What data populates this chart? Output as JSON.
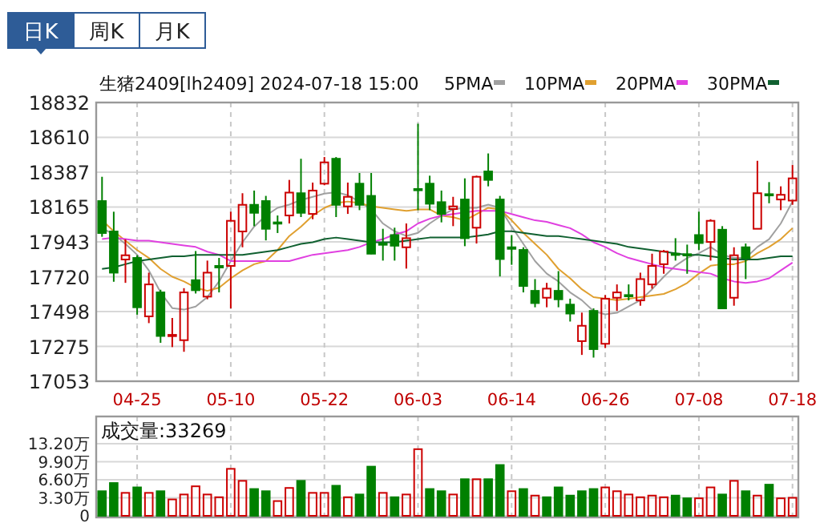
{
  "chart_data": [
    {
      "type": "candlestick",
      "title": "生猪2409[lh2409] 2024-07-18 15:00",
      "annotations": [
        "日K",
        "周K",
        "月K"
      ],
      "categories": [
        null,
        null,
        null,
        "04-25",
        null,
        null,
        null,
        null,
        null,
        null,
        null,
        "05-10",
        null,
        null,
        null,
        null,
        null,
        null,
        null,
        "05-22",
        null,
        null,
        null,
        null,
        null,
        null,
        null,
        "06-03",
        null,
        null,
        null,
        null,
        null,
        null,
        null,
        "06-14",
        null,
        null,
        null,
        null,
        null,
        null,
        null,
        "06-26",
        null,
        null,
        null,
        null,
        null,
        null,
        null,
        "07-08",
        null,
        null,
        null,
        null,
        null,
        null,
        null,
        "07-18"
      ],
      "ohlc": [
        [
          18203,
          18358,
          17975,
          17999
        ],
        [
          18009,
          18135,
          17688,
          17746
        ],
        [
          17830,
          17959,
          17681,
          17857
        ],
        [
          17840,
          17857,
          17478,
          17525
        ],
        [
          17467,
          17746,
          17424,
          17671
        ],
        [
          17620,
          17637,
          17298,
          17342
        ],
        [
          17342,
          17457,
          17271,
          17349
        ],
        [
          17315,
          17647,
          17241,
          17620
        ],
        [
          17698,
          17884,
          17613,
          17634
        ],
        [
          17593,
          17823,
          17576,
          17746
        ],
        [
          17789,
          17840,
          17620,
          17779
        ],
        [
          17789,
          18135,
          17518,
          18077
        ],
        [
          18009,
          18253,
          17908,
          18179
        ],
        [
          18179,
          18270,
          18043,
          18128
        ],
        [
          18203,
          18236,
          17952,
          18026
        ],
        [
          18067,
          18111,
          17999,
          18060
        ],
        [
          18111,
          18338,
          18060,
          18257
        ],
        [
          18253,
          18473,
          18101,
          18128
        ],
        [
          18121,
          18321,
          18087,
          18270
        ],
        [
          18314,
          18484,
          18304,
          18450
        ],
        [
          18473,
          18484,
          18101,
          18179
        ],
        [
          18169,
          18321,
          18121,
          18230
        ],
        [
          18314,
          18382,
          18145,
          18179
        ],
        [
          18236,
          18382,
          17864,
          17867
        ],
        [
          17932,
          18026,
          17823,
          17925
        ],
        [
          17986,
          18033,
          17823,
          17918
        ],
        [
          17908,
          18060,
          17772,
          17966
        ],
        [
          18280,
          18697,
          18145,
          18274
        ],
        [
          18314,
          18365,
          18145,
          18186
        ],
        [
          18196,
          18270,
          18067,
          18121
        ],
        [
          18152,
          18230,
          18043,
          18169
        ],
        [
          18213,
          18348,
          17915,
          17966
        ],
        [
          18033,
          18365,
          17932,
          18358
        ],
        [
          18392,
          18507,
          18297,
          18338
        ],
        [
          18213,
          18236,
          17722,
          17833
        ],
        [
          17908,
          17986,
          17796,
          17898
        ],
        [
          17891,
          17908,
          17620,
          17661
        ],
        [
          17630,
          17705,
          17525,
          17552
        ],
        [
          17586,
          17681,
          17525,
          17644
        ],
        [
          17630,
          17756,
          17525,
          17576
        ],
        [
          17542,
          17580,
          17434,
          17485
        ],
        [
          17309,
          17491,
          17221,
          17407
        ],
        [
          17502,
          17518,
          17204,
          17258
        ],
        [
          17292,
          17603,
          17265,
          17580
        ],
        [
          17586,
          17671,
          17502,
          17620
        ],
        [
          17603,
          17671,
          17569,
          17596
        ],
        [
          17569,
          17746,
          17535,
          17705
        ],
        [
          17671,
          17867,
          17644,
          17789
        ],
        [
          17800,
          17891,
          17739,
          17881
        ],
        [
          17867,
          17966,
          17823,
          17860
        ],
        [
          17864,
          17925,
          17739,
          17857
        ],
        [
          17986,
          18135,
          17891,
          17935
        ],
        [
          17942,
          18087,
          17823,
          18077
        ],
        [
          18020,
          18043,
          17518,
          17518
        ],
        [
          17586,
          17908,
          17535,
          17857
        ],
        [
          17908,
          17932,
          17705,
          17840
        ],
        [
          18026,
          18460,
          18026,
          18253
        ],
        [
          18247,
          18324,
          18189,
          18240
        ],
        [
          18213,
          18297,
          18145,
          18243
        ],
        [
          18206,
          18433,
          18179,
          18348
        ]
      ],
      "series": [
        {
          "type": "line",
          "name": "5PMA",
          "color": "#a0a0a0",
          "values": [
            18030,
            17990,
            17930,
            17860,
            17760,
            17620,
            17520,
            17510,
            17530,
            17590,
            17690,
            17820,
            17940,
            18040,
            18110,
            18160,
            18180,
            18210,
            18230,
            18250,
            18260,
            18240,
            18200,
            18150,
            18060,
            18010,
            17980,
            18000,
            18060,
            18110,
            18150,
            18160,
            18160,
            18180,
            18160,
            18040,
            17930,
            17820,
            17740,
            17690,
            17620,
            17570,
            17500,
            17480,
            17490,
            17530,
            17570,
            17640,
            17720,
            17790,
            17840,
            17870,
            17910,
            17860,
            17840,
            17840,
            17910,
            17960,
            18060,
            18200
          ]
        },
        {
          "type": "line",
          "name": "10PMA",
          "color": "#e0a030",
          "values": [
            18080,
            18010,
            17950,
            17890,
            17840,
            17770,
            17720,
            17690,
            17650,
            17630,
            17650,
            17710,
            17760,
            17800,
            17820,
            17890,
            17980,
            18040,
            18110,
            18160,
            18190,
            18200,
            18190,
            18170,
            18160,
            18150,
            18140,
            18150,
            18150,
            18110,
            18100,
            18080,
            18120,
            18160,
            18150,
            18080,
            18000,
            17930,
            17860,
            17770,
            17710,
            17640,
            17590,
            17580,
            17570,
            17580,
            17590,
            17600,
            17610,
            17640,
            17680,
            17740,
            17790,
            17800,
            17800,
            17820,
            17870,
            17910,
            17960,
            18030
          ]
        },
        {
          "type": "line",
          "name": "20PMA",
          "color": "#e040e0",
          "values": [
            17960,
            17970,
            17960,
            17950,
            17950,
            17940,
            17930,
            17920,
            17910,
            17880,
            17860,
            17820,
            17820,
            17820,
            17820,
            17820,
            17820,
            17840,
            17860,
            17870,
            17880,
            17890,
            17910,
            17940,
            17960,
            17990,
            18010,
            18060,
            18090,
            18110,
            18120,
            18130,
            18140,
            18140,
            18140,
            18120,
            18100,
            18080,
            18070,
            18050,
            18030,
            17990,
            17940,
            17910,
            17870,
            17840,
            17820,
            17800,
            17780,
            17770,
            17760,
            17750,
            17740,
            17710,
            17690,
            17680,
            17690,
            17710,
            17760,
            17810
          ]
        },
        {
          "type": "line",
          "name": "30PMA",
          "color": "#106030",
          "values": [
            17770,
            17780,
            17800,
            17820,
            17830,
            17840,
            17850,
            17850,
            17860,
            17860,
            17860,
            17860,
            17860,
            17870,
            17880,
            17890,
            17910,
            17930,
            17940,
            17960,
            17970,
            17960,
            17950,
            17940,
            17940,
            17940,
            17950,
            17960,
            17970,
            17970,
            17970,
            17970,
            17980,
            17990,
            18010,
            18010,
            18000,
            17990,
            17980,
            17980,
            17970,
            17960,
            17950,
            17940,
            17930,
            17910,
            17900,
            17890,
            17880,
            17870,
            17860,
            17860,
            17850,
            17840,
            17830,
            17830,
            17830,
            17840,
            17850,
            17850
          ]
        }
      ],
      "ylim": [
        17053,
        18832
      ],
      "yticks": [
        17053,
        17275,
        17498,
        17720,
        17943,
        18165,
        18387,
        18610,
        18832
      ],
      "grid": true,
      "legend": "top right"
    },
    {
      "type": "bar",
      "title": "成交量:33269",
      "categories": [
        null,
        null,
        null,
        null,
        null,
        null,
        null,
        null,
        null,
        null,
        null,
        null,
        null,
        null,
        null,
        null,
        null,
        null,
        null,
        null,
        null,
        null,
        null,
        null,
        null,
        null,
        null,
        null,
        null,
        null,
        null,
        null,
        null,
        null,
        null,
        null,
        null,
        null,
        null,
        null,
        null,
        null,
        null,
        null,
        null,
        null,
        null,
        null,
        null,
        null,
        null,
        null,
        null,
        null,
        null,
        null,
        null,
        null,
        null,
        null
      ],
      "values": [
        4.5,
        6.0,
        4.2,
        5.2,
        4.2,
        4.5,
        3.0,
        3.9,
        5.4,
        3.9,
        3.4,
        8.6,
        6.4,
        4.9,
        4.5,
        2.7,
        5.1,
        6.4,
        4.2,
        4.2,
        5.5,
        3.4,
        3.9,
        9.0,
        4.2,
        3.4,
        3.9,
        12.2,
        4.9,
        4.5,
        3.9,
        6.7,
        6.7,
        6.7,
        9.3,
        4.5,
        4.9,
        3.7,
        3.4,
        5.2,
        3.7,
        4.5,
        4.9,
        5.2,
        4.5,
        3.9,
        3.4,
        3.7,
        3.4,
        3.7,
        3.2,
        3.2,
        5.2,
        3.9,
        6.4,
        4.5,
        3.7,
        5.7,
        3.2,
        3.3
      ],
      "colors": [
        "#008000",
        "#008000",
        "#cc0000",
        "#008000",
        "#cc0000",
        "#008000",
        "#cc0000",
        "#cc0000",
        "#cc0000",
        "#cc0000",
        "#cc0000",
        "#cc0000",
        "#cc0000",
        "#008000",
        "#008000",
        "#cc0000",
        "#cc0000",
        "#008000",
        "#cc0000",
        "#cc0000",
        "#008000",
        "#cc0000",
        "#008000",
        "#008000",
        "#cc0000",
        "#008000",
        "#cc0000",
        "#cc0000",
        "#008000",
        "#008000",
        "#cc0000",
        "#008000",
        "#cc0000",
        "#008000",
        "#008000",
        "#cc0000",
        "#008000",
        "#cc0000",
        "#008000",
        "#008000",
        "#008000",
        "#008000",
        "#008000",
        "#cc0000",
        "#cc0000",
        "#cc0000",
        "#cc0000",
        "#cc0000",
        "#cc0000",
        "#008000",
        "#008000",
        "#cc0000",
        "#cc0000",
        "#008000",
        "#cc0000",
        "#008000",
        "#cc0000",
        "#008000",
        "#cc0000",
        "#cc0000"
      ],
      "ylim": [
        0,
        13.2
      ],
      "yticks": [
        0,
        {
          "value": 3.3,
          "label": "3.30万"
        },
        {
          "value": 6.6,
          "label": "6.60万"
        },
        {
          "value": 9.9,
          "label": "9.90万"
        },
        {
          "value": 13.2,
          "label": "13.20万"
        }
      ],
      "grid": true,
      "tick_labels": "y"
    }
  ]
}
